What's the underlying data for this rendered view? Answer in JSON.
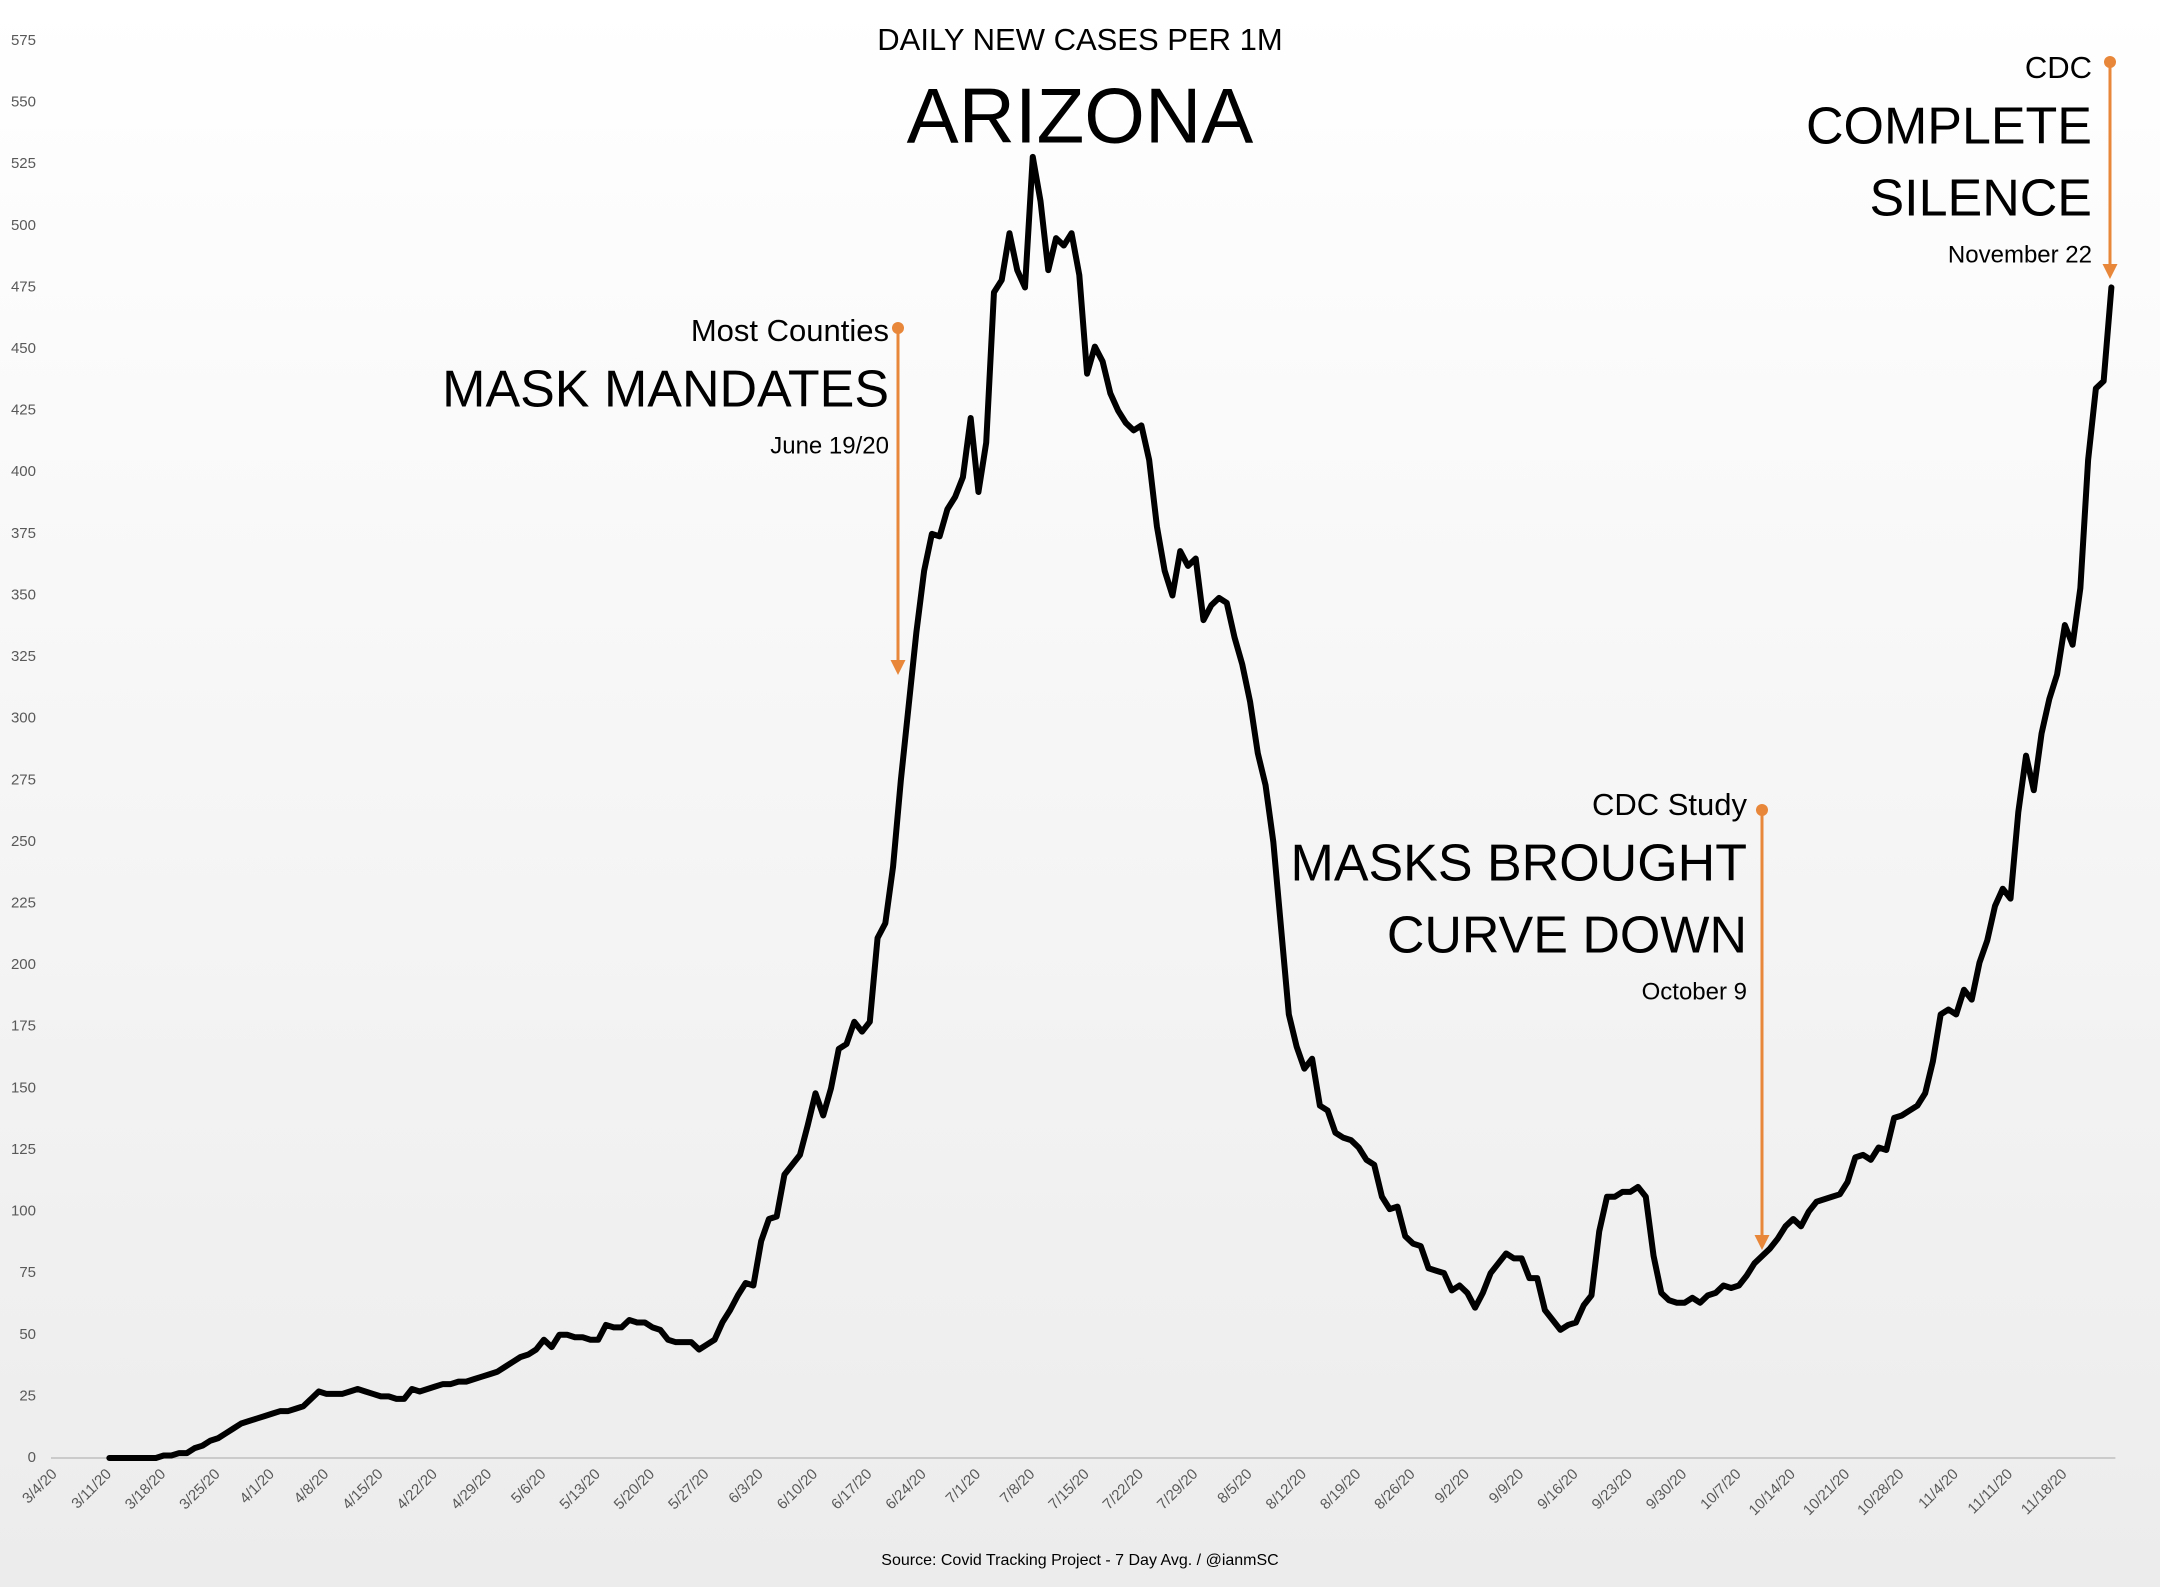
{
  "chart_data": {
    "type": "line",
    "subtitle": "DAILY NEW CASES PER 1M",
    "title": "ARIZONA",
    "source": "Source: Covid Tracking Project - 7 Day Avg. / @ianmSC",
    "ylim": [
      0,
      575
    ],
    "yticks": [
      0,
      25,
      50,
      75,
      100,
      125,
      150,
      175,
      200,
      225,
      250,
      275,
      300,
      325,
      350,
      375,
      400,
      425,
      450,
      475,
      500,
      525,
      550,
      575
    ],
    "grid": false,
    "categories": [
      "3/4/20",
      null,
      null,
      null,
      null,
      null,
      null,
      "3/11/20",
      null,
      null,
      null,
      null,
      null,
      null,
      "3/18/20",
      null,
      null,
      null,
      null,
      null,
      null,
      "3/25/20",
      null,
      null,
      null,
      null,
      null,
      null,
      "4/1/20",
      null,
      null,
      null,
      null,
      null,
      null,
      "4/8/20",
      null,
      null,
      null,
      null,
      null,
      null,
      "4/15/20",
      null,
      null,
      null,
      null,
      null,
      null,
      "4/22/20",
      null,
      null,
      null,
      null,
      null,
      null,
      "4/29/20",
      null,
      null,
      null,
      null,
      null,
      null,
      "5/6/20",
      null,
      null,
      null,
      null,
      null,
      null,
      "5/13/20",
      null,
      null,
      null,
      null,
      null,
      null,
      "5/20/20",
      null,
      null,
      null,
      null,
      null,
      null,
      "5/27/20",
      null,
      null,
      null,
      null,
      null,
      null,
      "6/3/20",
      null,
      null,
      null,
      null,
      null,
      null,
      "6/10/20",
      null,
      null,
      null,
      null,
      null,
      null,
      "6/17/20",
      null,
      null,
      null,
      null,
      null,
      null,
      "6/24/20",
      null,
      null,
      null,
      null,
      null,
      null,
      "7/1/20",
      null,
      null,
      null,
      null,
      null,
      null,
      "7/8/20",
      null,
      null,
      null,
      null,
      null,
      null,
      "7/15/20",
      null,
      null,
      null,
      null,
      null,
      null,
      "7/22/20",
      null,
      null,
      null,
      null,
      null,
      null,
      "7/29/20",
      null,
      null,
      null,
      null,
      null,
      null,
      "8/5/20",
      null,
      null,
      null,
      null,
      null,
      null,
      "8/12/20",
      null,
      null,
      null,
      null,
      null,
      null,
      "8/19/20",
      null,
      null,
      null,
      null,
      null,
      null,
      "8/26/20",
      null,
      null,
      null,
      null,
      null,
      null,
      "9/2/20",
      null,
      null,
      null,
      null,
      null,
      null,
      "9/9/20",
      null,
      null,
      null,
      null,
      null,
      null,
      "9/16/20",
      null,
      null,
      null,
      null,
      null,
      null,
      "9/23/20",
      null,
      null,
      null,
      null,
      null,
      null,
      "9/30/20",
      null,
      null,
      null,
      null,
      null,
      null,
      "10/7/20",
      null,
      null,
      null,
      null,
      null,
      null,
      "10/14/20",
      null,
      null,
      null,
      null,
      null,
      null,
      "10/21/20",
      null,
      null,
      null,
      null,
      null,
      null,
      "10/28/20",
      null,
      null,
      null,
      null,
      null,
      null,
      "11/4/20",
      null,
      null,
      null,
      null,
      null,
      null,
      "11/11/20",
      null,
      null,
      null,
      null,
      null,
      null,
      "11/18/20",
      null,
      null,
      null,
      null,
      null,
      null
    ],
    "series": [
      {
        "color": "#000000",
        "values": [
          null,
          null,
          null,
          null,
          null,
          null,
          null,
          0,
          0,
          0,
          0,
          0,
          0,
          0,
          1,
          1,
          2,
          2,
          4,
          5,
          7,
          8,
          10,
          12,
          14,
          15,
          16,
          17,
          18,
          19,
          19,
          20,
          21,
          24,
          27,
          26,
          26,
          26,
          27,
          28,
          27,
          26,
          25,
          25,
          24,
          24,
          28,
          27,
          28,
          29,
          30,
          30,
          31,
          31,
          32,
          33,
          34,
          35,
          37,
          39,
          41,
          42,
          44,
          48,
          45,
          50,
          50,
          49,
          49,
          48,
          48,
          54,
          53,
          53,
          56,
          55,
          55,
          53,
          52,
          48,
          47,
          47,
          47,
          44,
          46,
          48,
          55,
          60,
          66,
          71,
          70,
          88,
          97,
          98,
          115,
          119,
          123,
          135,
          148,
          139,
          150,
          166,
          168,
          177,
          173,
          177,
          211,
          217,
          240,
          275,
          305,
          335,
          360,
          375,
          374,
          385,
          390,
          398,
          422,
          392,
          412,
          473,
          478,
          497,
          482,
          475,
          528,
          510,
          482,
          495,
          492,
          497,
          480,
          440,
          451,
          445,
          432,
          425,
          420,
          417,
          419,
          405,
          378,
          360,
          350,
          368,
          362,
          365,
          340,
          346,
          349,
          347,
          333,
          322,
          307,
          286,
          273,
          250,
          215,
          180,
          167,
          158,
          162,
          143,
          141,
          132,
          130,
          129,
          126,
          121,
          119,
          106,
          101,
          102,
          90,
          87,
          86,
          77,
          76,
          75,
          68,
          70,
          67,
          61,
          67,
          75,
          79,
          83,
          81,
          81,
          73,
          73,
          60,
          56,
          52,
          54,
          55,
          62,
          66,
          92,
          106,
          106,
          108,
          108,
          110,
          106,
          82,
          67,
          64,
          63,
          63,
          65,
          63,
          66,
          67,
          70,
          69,
          70,
          74,
          79,
          82,
          85,
          89,
          94,
          97,
          94,
          100,
          104,
          105,
          106,
          107,
          112,
          122,
          123,
          121,
          126,
          125,
          138,
          139,
          141,
          143,
          148,
          161,
          180,
          182,
          180,
          190,
          186,
          201,
          210,
          224,
          231,
          227,
          262,
          285,
          271,
          294,
          308,
          318,
          338,
          330,
          353,
          405,
          434,
          437,
          475
        ]
      }
    ],
    "annotations": [
      {
        "label": "Most Counties",
        "headline": [
          "MASK MANDATES"
        ],
        "date": "June 19/20",
        "color": "#e8873a"
      },
      {
        "label": "CDC Study",
        "headline": [
          "MASKS BROUGHT",
          "CURVE DOWN"
        ],
        "date": "October 9",
        "color": "#e8873a"
      },
      {
        "label": "CDC",
        "headline": [
          "COMPLETE",
          "SILENCE"
        ],
        "date": "November 22",
        "color": "#e8873a"
      }
    ]
  }
}
